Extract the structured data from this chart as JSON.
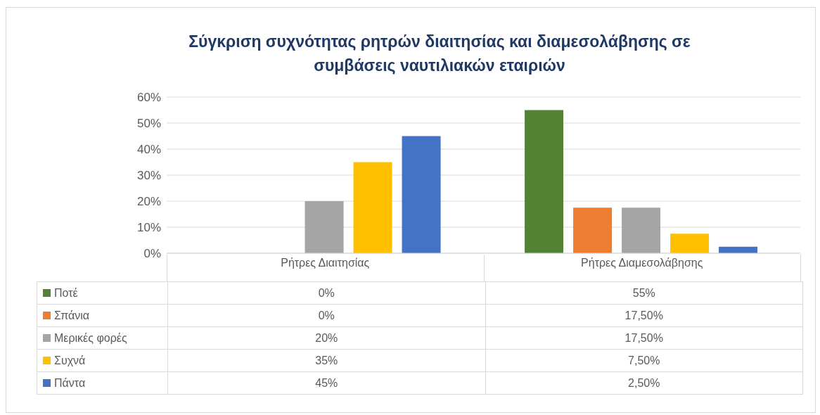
{
  "chart_data": {
    "type": "bar",
    "title": "Σύγκριση συχνότητας ρητρών διαιτησίας και διαμεσολάβησης σε συμβάσεις ναυτιλιακών εταιριών",
    "categories": [
      "Ρήτρες Διαιτησίας",
      "Ρήτρες Διαμεσολάβησης"
    ],
    "series": [
      {
        "name": "Ποτέ",
        "color": "#548235",
        "values": [
          0,
          55
        ],
        "value_labels": [
          "0%",
          "55%"
        ]
      },
      {
        "name": "Σπάνια",
        "color": "#ed7d31",
        "values": [
          0,
          17.5
        ],
        "value_labels": [
          "0%",
          "17,50%"
        ]
      },
      {
        "name": "Μερικές φορές",
        "color": "#a5a5a5",
        "values": [
          20,
          17.5
        ],
        "value_labels": [
          "20%",
          "17,50%"
        ]
      },
      {
        "name": "Συχνά",
        "color": "#ffc000",
        "values": [
          35,
          7.5
        ],
        "value_labels": [
          "35%",
          "7,50%"
        ]
      },
      {
        "name": "Πάντα",
        "color": "#4472c4",
        "values": [
          45,
          2.5
        ],
        "value_labels": [
          "45%",
          "2,50%"
        ]
      }
    ],
    "ylim": [
      0,
      60
    ],
    "yticks": [
      {
        "value": 0,
        "label": "0%"
      },
      {
        "value": 10,
        "label": "10%"
      },
      {
        "value": 20,
        "label": "20%"
      },
      {
        "value": 30,
        "label": "30%"
      },
      {
        "value": 40,
        "label": "40%"
      },
      {
        "value": 50,
        "label": "50%"
      },
      {
        "value": 60,
        "label": "60%"
      }
    ],
    "grid": "y",
    "legend": "bottom"
  }
}
